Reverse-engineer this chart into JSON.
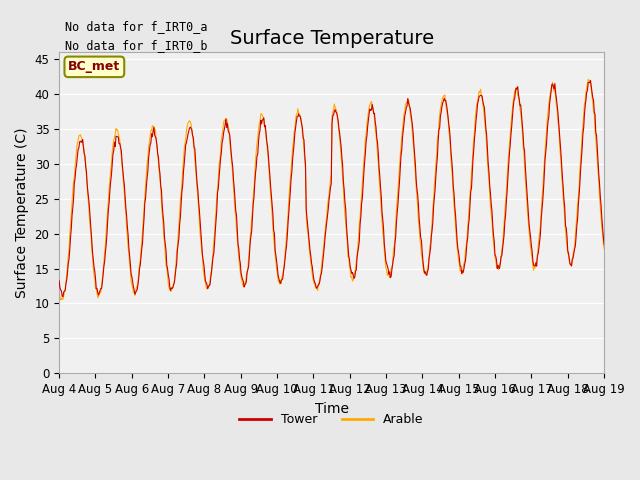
{
  "title": "Surface Temperature",
  "ylabel": "Surface Temperature (C)",
  "xlabel": "Time",
  "ylim": [
    0,
    46
  ],
  "yticks": [
    0,
    5,
    10,
    15,
    20,
    25,
    30,
    35,
    40,
    45
  ],
  "xtick_labels": [
    "Aug 4",
    "Aug 5",
    "Aug 6",
    "Aug 7",
    "Aug 8",
    "Aug 9",
    "Aug 10",
    "Aug 11",
    "Aug 12",
    "Aug 13",
    "Aug 14",
    "Aug 15",
    "Aug 16",
    "Aug 17",
    "Aug 18",
    "Aug 19"
  ],
  "no_data_texts": [
    "No data for f_IRT0_a",
    "No data for f_IRT0_b"
  ],
  "bc_met_label": "BC_met",
  "tower_color": "#cc0000",
  "arable_color": "#ffaa00",
  "legend_tower": "Tower",
  "legend_arable": "Arable",
  "bg_color": "#e8e8e8",
  "plot_bg_color": "#f0f0f0",
  "grid_color": "#ffffff",
  "title_fontsize": 14,
  "label_fontsize": 10,
  "tick_fontsize": 8.5
}
